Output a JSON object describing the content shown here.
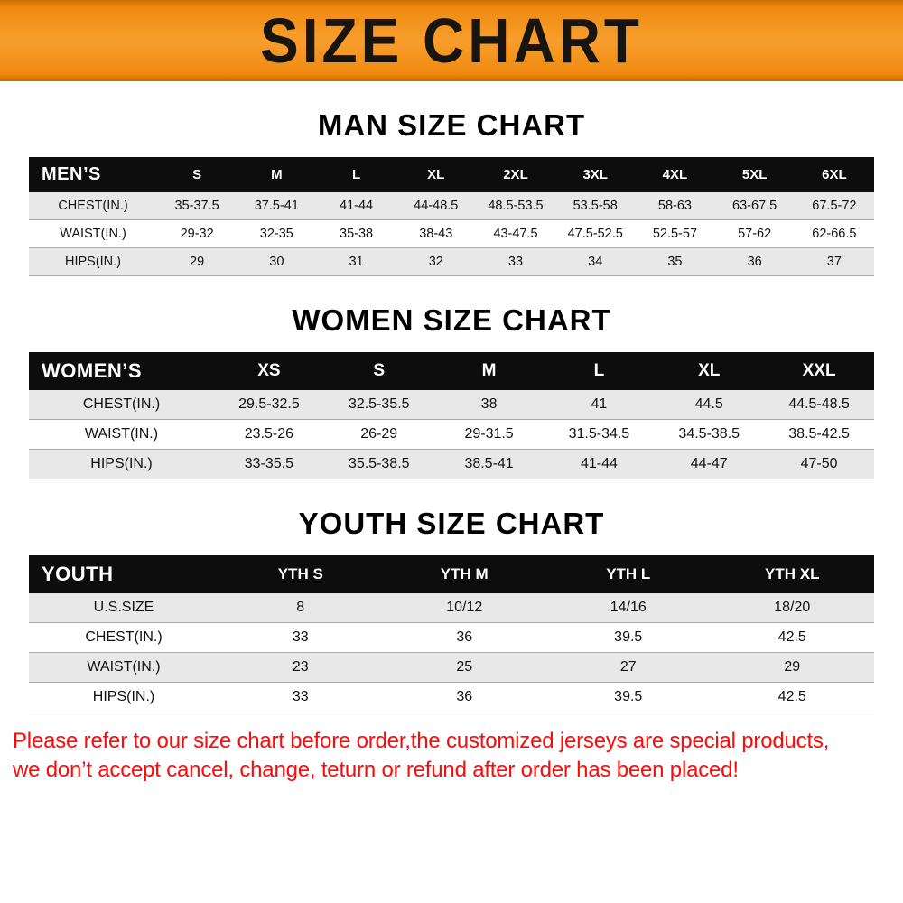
{
  "banner": {
    "title": "SIZE CHART"
  },
  "sections": {
    "men": {
      "title": "MAN SIZE CHART"
    },
    "women": {
      "title": "WOMEN SIZE CHART"
    },
    "youth": {
      "title": "YOUTH SIZE CHART"
    }
  },
  "tables": {
    "men": {
      "header_label": "MEN’S",
      "columns": [
        "S",
        "M",
        "L",
        "XL",
        "2XL",
        "3XL",
        "4XL",
        "5XL",
        "6XL"
      ],
      "rows": [
        {
          "label": "CHEST(IN.)",
          "values": [
            "35-37.5",
            "37.5-41",
            "41-44",
            "44-48.5",
            "48.5-53.5",
            "53.5-58",
            "58-63",
            "63-67.5",
            "67.5-72"
          ]
        },
        {
          "label": "WAIST(IN.)",
          "values": [
            "29-32",
            "32-35",
            "35-38",
            "38-43",
            "43-47.5",
            "47.5-52.5",
            "52.5-57",
            "57-62",
            "62-66.5"
          ]
        },
        {
          "label": "HIPS(IN.)",
          "values": [
            "29",
            "30",
            "31",
            "32",
            "33",
            "34",
            "35",
            "36",
            "37"
          ]
        }
      ]
    },
    "women": {
      "header_label": "WOMEN’S",
      "columns": [
        "XS",
        "S",
        "M",
        "L",
        "XL",
        "XXL"
      ],
      "rows": [
        {
          "label": "CHEST(IN.)",
          "values": [
            "29.5-32.5",
            "32.5-35.5",
            "38",
            "41",
            "44.5",
            "44.5-48.5"
          ]
        },
        {
          "label": "WAIST(IN.)",
          "values": [
            "23.5-26",
            "26-29",
            "29-31.5",
            "31.5-34.5",
            "34.5-38.5",
            "38.5-42.5"
          ]
        },
        {
          "label": "HIPS(IN.)",
          "values": [
            "33-35.5",
            "35.5-38.5",
            "38.5-41",
            "41-44",
            "44-47",
            "47-50"
          ]
        }
      ]
    },
    "youth": {
      "header_label": "YOUTH",
      "columns": [
        "YTH S",
        "YTH M",
        "YTH L",
        "YTH XL"
      ],
      "rows": [
        {
          "label": "U.S.SIZE",
          "values": [
            "8",
            "10/12",
            "14/16",
            "18/20"
          ]
        },
        {
          "label": "CHEST(IN.)",
          "values": [
            "33",
            "36",
            "39.5",
            "42.5"
          ]
        },
        {
          "label": "WAIST(IN.)",
          "values": [
            "23",
            "25",
            "27",
            "29"
          ]
        },
        {
          "label": "HIPS(IN.)",
          "values": [
            "33",
            "36",
            "39.5",
            "42.5"
          ]
        }
      ]
    }
  },
  "footer": {
    "color": "#fb0b0b",
    "lines": [
      "Please refer to our size chart before order,the customized jerseys are special products,",
      "we don’t accept cancel, change, teturn or refund after order has been placed!"
    ]
  }
}
